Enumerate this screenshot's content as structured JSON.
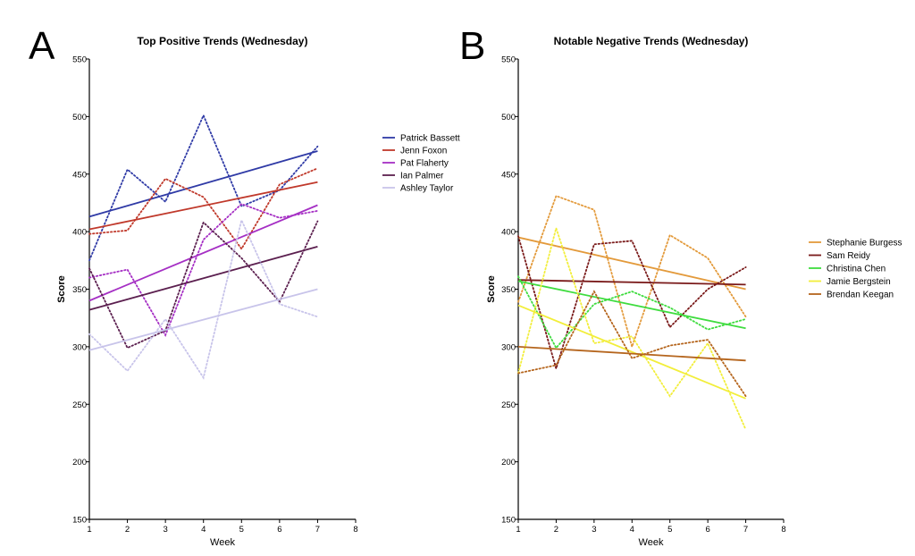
{
  "chart_data": [
    {
      "panel": "A",
      "type": "line",
      "title": "Top Positive Trends (Wednesday)",
      "xlabel": "Week",
      "ylabel": "Score",
      "xlim": [
        1,
        8
      ],
      "ylim": [
        150,
        550
      ],
      "xticks": [
        1,
        2,
        3,
        4,
        5,
        6,
        7,
        8
      ],
      "yticks": [
        150,
        200,
        250,
        300,
        350,
        400,
        450,
        500,
        550
      ],
      "legend": "right",
      "series": [
        {
          "name": "Patrick Bassett",
          "color": "#2f3aa6",
          "x": [
            1,
            2,
            3,
            4,
            5,
            6,
            7
          ],
          "observed": [
            375,
            454,
            426,
            501,
            422,
            436,
            474
          ],
          "trend": [
            413,
            470
          ]
        },
        {
          "name": "Jenn Foxon",
          "color": "#c0392b",
          "x": [
            1,
            2,
            3,
            4,
            5,
            6,
            7
          ],
          "observed": [
            398,
            401,
            446,
            430,
            385,
            441,
            455
          ],
          "trend": [
            402,
            443
          ]
        },
        {
          "name": "Pat Flaherty",
          "color": "#a52fc4",
          "x": [
            1,
            2,
            3,
            4,
            5,
            6,
            7
          ],
          "observed": [
            360,
            367,
            310,
            393,
            424,
            412,
            418
          ],
          "trend": [
            340,
            423
          ]
        },
        {
          "name": "Ian Palmer",
          "color": "#5b1f4f",
          "x": [
            1,
            2,
            3,
            4,
            5,
            6,
            7
          ],
          "observed": [
            368,
            299,
            314,
            408,
            377,
            339,
            409
          ],
          "trend": [
            332,
            387
          ]
        },
        {
          "name": "Ashley Taylor",
          "color": "#c8c4ea",
          "x": [
            1,
            2,
            3,
            4,
            5,
            6,
            7
          ],
          "observed": [
            311,
            279,
            324,
            273,
            410,
            337,
            326
          ],
          "trend": [
            297,
            350
          ]
        }
      ]
    },
    {
      "panel": "B",
      "type": "line",
      "title": "Notable Negative Trends (Wednesday)",
      "xlabel": "Week",
      "ylabel": "Score",
      "xlim": [
        1,
        8
      ],
      "ylim": [
        150,
        550
      ],
      "xticks": [
        1,
        2,
        3,
        4,
        5,
        6,
        7,
        8
      ],
      "yticks": [
        150,
        200,
        250,
        300,
        350,
        400,
        450,
        500,
        550
      ],
      "legend": "right",
      "series": [
        {
          "name": "Stephanie Burgess",
          "color": "#e39a3b",
          "x": [
            1,
            2,
            3,
            4,
            5,
            6,
            7
          ],
          "observed": [
            339,
            431,
            419,
            300,
            397,
            377,
            326
          ],
          "trend": [
            395,
            350
          ]
        },
        {
          "name": "Sam Reidy",
          "color": "#7a1a1a",
          "x": [
            1,
            2,
            3,
            4,
            5,
            6,
            7
          ],
          "observed": [
            396,
            281,
            389,
            392,
            317,
            350,
            369
          ],
          "trend": [
            358,
            354
          ]
        },
        {
          "name": "Christina Chen",
          "color": "#3fdc3f",
          "x": [
            1,
            2,
            3,
            4,
            5,
            6,
            7
          ],
          "observed": [
            361,
            299,
            337,
            348,
            334,
            315,
            324
          ],
          "trend": [
            357,
            316
          ]
        },
        {
          "name": "Jamie Bergstein",
          "color": "#f2ee3a",
          "x": [
            1,
            2,
            3,
            4,
            5,
            6,
            7
          ],
          "observed": [
            277,
            403,
            303,
            309,
            257,
            303,
            228
          ],
          "trend": [
            336,
            255
          ]
        },
        {
          "name": "Brendan Keegan",
          "color": "#b5651d",
          "x": [
            1,
            2,
            3,
            4,
            5,
            6,
            7
          ],
          "observed": [
            277,
            284,
            348,
            290,
            301,
            306,
            257
          ],
          "trend": [
            300,
            288
          ]
        }
      ]
    }
  ]
}
